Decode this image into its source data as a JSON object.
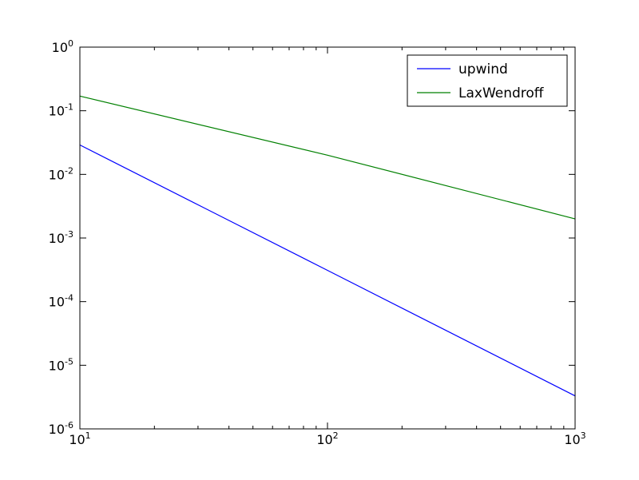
{
  "chart_data": {
    "type": "line",
    "xscale": "log",
    "yscale": "log",
    "xlim": [
      10,
      1000
    ],
    "ylim": [
      1e-06,
      1
    ],
    "x_ticks": [
      {
        "value": 10,
        "base": "10",
        "exp": "1"
      },
      {
        "value": 100,
        "base": "10",
        "exp": "2"
      },
      {
        "value": 1000,
        "base": "10",
        "exp": "3"
      }
    ],
    "y_ticks": [
      {
        "value": 1,
        "base": "10",
        "exp": "0"
      },
      {
        "value": 0.1,
        "base": "10",
        "exp": "-1"
      },
      {
        "value": 0.01,
        "base": "10",
        "exp": "-2"
      },
      {
        "value": 0.001,
        "base": "10",
        "exp": "-3"
      },
      {
        "value": 0.0001,
        "base": "10",
        "exp": "-4"
      },
      {
        "value": 1e-05,
        "base": "10",
        "exp": "-5"
      },
      {
        "value": 1e-06,
        "base": "10",
        "exp": "-6"
      }
    ],
    "grid": false,
    "legend_position": "top-right",
    "series": [
      {
        "name": "upwind",
        "color": "#0000ff",
        "x": [
          10,
          100,
          1000
        ],
        "y": [
          0.029,
          0.00031,
          3.3e-06
        ]
      },
      {
        "name": "LaxWendroff",
        "color": "#008000",
        "x": [
          10,
          100,
          1000
        ],
        "y": [
          0.17,
          0.02,
          0.002
        ]
      }
    ]
  }
}
